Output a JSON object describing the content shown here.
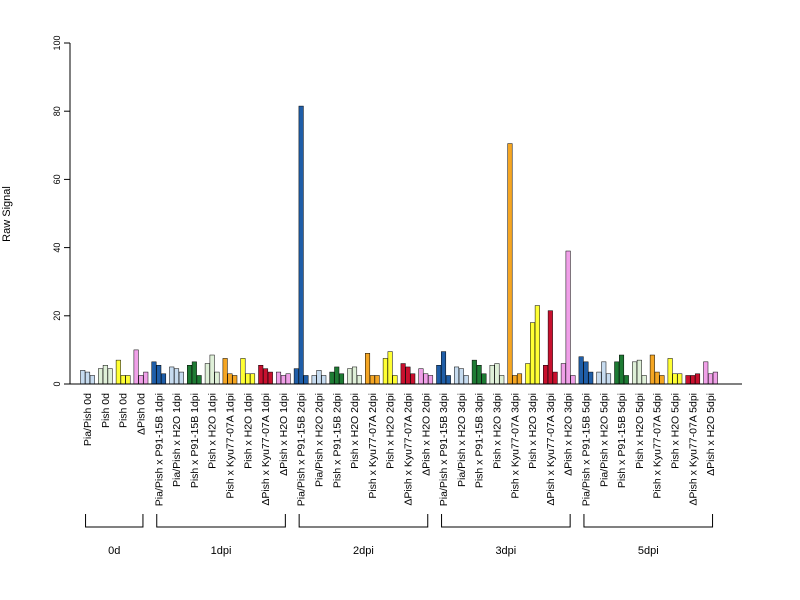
{
  "chart_data": {
    "type": "bar",
    "title": "",
    "xlabel": "",
    "ylabel": "Raw Signal",
    "ylim": [
      0,
      100
    ],
    "yticks": [
      0,
      20,
      40,
      60,
      80,
      100
    ],
    "bars_per_group": 3,
    "colors": {
      "blue": "#1f5ea8",
      "lightblue": "#c6dbef",
      "darkgreen": "#1e7b34",
      "lightgreen": "#dff0d8",
      "orange": "#f5a623",
      "yellow": "#ffff33",
      "red": "#c8102e",
      "pink": "#f0a0e8"
    },
    "groups": [
      {
        "label": "Pia/Pish 0d",
        "color": "lightblue",
        "values": [
          4,
          3.5,
          2.5
        ]
      },
      {
        "label": "Pish 0d",
        "color": "lightgreen",
        "values": [
          4.5,
          5.5,
          4.5
        ]
      },
      {
        "label": "Pish 0d",
        "color": "yellow",
        "values": [
          7,
          2.5,
          2.5
        ]
      },
      {
        "label": "ΔPish 0d",
        "color": "pink",
        "values": [
          10,
          2.5,
          3.5
        ]
      },
      {
        "label": "Pia/Pish x P91-15B 1dpi",
        "color": "blue",
        "values": [
          6.5,
          5.5,
          3
        ]
      },
      {
        "label": "Pia/Pish x H2O 1dpi",
        "color": "lightblue",
        "values": [
          5,
          4.5,
          3.5
        ]
      },
      {
        "label": "Pish x P91-15B 1dpi",
        "color": "darkgreen",
        "values": [
          5.5,
          6.5,
          2.5
        ]
      },
      {
        "label": "Pish x H2O 1dpi",
        "color": "lightgreen",
        "values": [
          6,
          8.5,
          3.5
        ]
      },
      {
        "label": "Pish x Kyu77-07A 1dpi",
        "color": "orange",
        "values": [
          7.5,
          3,
          2.5
        ]
      },
      {
        "label": "Pish x H2O 1dpi",
        "color": "yellow",
        "values": [
          7.5,
          3,
          3
        ]
      },
      {
        "label": "ΔPish x Kyu77-07A 1dpi",
        "color": "red",
        "values": [
          5.5,
          4.5,
          3.5
        ]
      },
      {
        "label": "ΔPish x H2O 1dpi",
        "color": "pink",
        "values": [
          3.5,
          2.5,
          3
        ]
      },
      {
        "label": "Pia/Pish x P91-15B 2dpi",
        "color": "blue",
        "values": [
          4.5,
          81.5,
          2.5
        ]
      },
      {
        "label": "Pia/Pish x H2O 2dpi",
        "color": "lightblue",
        "values": [
          2.5,
          4,
          2.5
        ]
      },
      {
        "label": "Pish x P91-15B 2dpi",
        "color": "darkgreen",
        "values": [
          3.5,
          5,
          3
        ]
      },
      {
        "label": "Pish x H2O 2dpi",
        "color": "lightgreen",
        "values": [
          4.5,
          5,
          2.5
        ]
      },
      {
        "label": "Pish x Kyu77-07A 2dpi",
        "color": "orange",
        "values": [
          9,
          2.5,
          2.5
        ]
      },
      {
        "label": "Pish x H2O 2dpi",
        "color": "yellow",
        "values": [
          7.5,
          9.5,
          2.5
        ]
      },
      {
        "label": "ΔPish x Kyu77-07A 2dpi",
        "color": "red",
        "values": [
          6,
          5,
          3
        ]
      },
      {
        "label": "ΔPish x H2O 2dpi",
        "color": "pink",
        "values": [
          4.5,
          3,
          2.5
        ]
      },
      {
        "label": "Pia/Pish x P91-15B 3dpi",
        "color": "blue",
        "values": [
          5.5,
          9.5,
          2.5
        ]
      },
      {
        "label": "Pia/Pish x H2O 3dpi",
        "color": "lightblue",
        "values": [
          5,
          4.5,
          2.5
        ]
      },
      {
        "label": "Pish x P91-15B 3dpi",
        "color": "darkgreen",
        "values": [
          7,
          5.5,
          3
        ]
      },
      {
        "label": "Pish x H2O 3dpi",
        "color": "lightgreen",
        "values": [
          5.5,
          6,
          2.5
        ]
      },
      {
        "label": "Pish x Kyu77-07A 3dpi",
        "color": "orange",
        "values": [
          70.5,
          2.5,
          3
        ]
      },
      {
        "label": "Pish x H2O 3dpi",
        "color": "yellow",
        "values": [
          6,
          18,
          23
        ]
      },
      {
        "label": "ΔPish x Kyu77-07A 3dpi",
        "color": "red",
        "values": [
          5.5,
          21.5,
          3.5
        ]
      },
      {
        "label": "ΔPish x H2O 3dpi",
        "color": "pink",
        "values": [
          6,
          39,
          2.5
        ]
      },
      {
        "label": "Pia/Pish x P91-15B 5dpi",
        "color": "blue",
        "values": [
          8,
          6.5,
          3.5
        ]
      },
      {
        "label": "Pia/Pish x H2O 5dpi",
        "color": "lightblue",
        "values": [
          3.5,
          6.5,
          3
        ]
      },
      {
        "label": "Pish x P91-15B 5dpi",
        "color": "darkgreen",
        "values": [
          6.5,
          8.5,
          2.5
        ]
      },
      {
        "label": "Pish x H2O 5dpi",
        "color": "lightgreen",
        "values": [
          6.5,
          7,
          2.5
        ]
      },
      {
        "label": "Pish x Kyu77-07A 5dpi",
        "color": "orange",
        "values": [
          8.5,
          3.5,
          2.5
        ]
      },
      {
        "label": "Pish x H2O 5dpi",
        "color": "yellow",
        "values": [
          7.5,
          3,
          3
        ]
      },
      {
        "label": "ΔPish x Kyu77-07A 5dpi",
        "color": "red",
        "values": [
          2.5,
          2.5,
          3
        ]
      },
      {
        "label": "ΔPish x H2O 5dpi",
        "color": "pink",
        "values": [
          6.5,
          3,
          3.5
        ]
      }
    ],
    "brackets": [
      {
        "label": "0d",
        "from": 0,
        "to": 3
      },
      {
        "label": "1dpi",
        "from": 4,
        "to": 11
      },
      {
        "label": "2dpi",
        "from": 12,
        "to": 19
      },
      {
        "label": "3dpi",
        "from": 20,
        "to": 27
      },
      {
        "label": "5dpi",
        "from": 28,
        "to": 35
      }
    ]
  }
}
